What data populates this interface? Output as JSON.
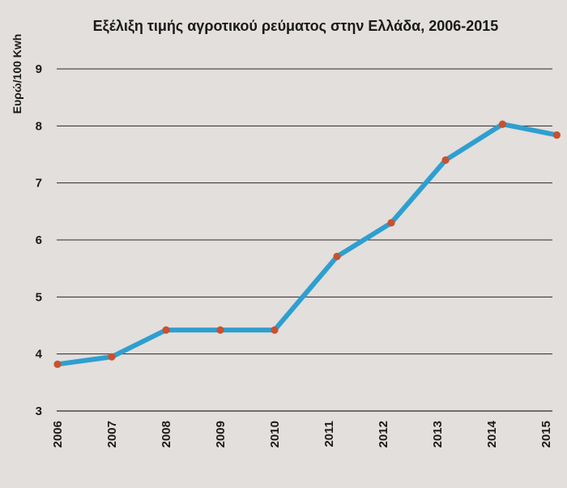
{
  "chart_data": {
    "type": "line",
    "title": "Εξέλιξη τιμής αγροτικού ρεύματος στην Ελλάδα, 2006-2015",
    "xlabel": "",
    "ylabel": "Ευρώ/100 Kwh",
    "categories": [
      "2006",
      "2007",
      "2008",
      "2009",
      "2010",
      "2011",
      "2012",
      "2013",
      "2014",
      "2015"
    ],
    "x": [
      2006.0,
      2007.0,
      2008.0,
      2009.0,
      2010.0,
      2011.0,
      2012.0,
      2013.0,
      2014.0,
      2015.0
    ],
    "series": [
      {
        "values": [
          3.82,
          3.95,
          4.42,
          4.42,
          4.42,
          5.71,
          6.3,
          7.4,
          8.03,
          7.84
        ],
        "x": [
          2006.0,
          2007.0,
          2008.0,
          2009.0,
          2010.0,
          2011.15,
          2012.15,
          2013.15,
          2014.2,
          2015.2
        ]
      }
    ],
    "yticks": [
      "3",
      "4",
      "5",
      "6",
      "7",
      "8",
      "9"
    ],
    "ylim": [
      3,
      9
    ],
    "grid": true,
    "colors": {
      "line": "#2e9fd0",
      "marker": "#c9512e",
      "grid": "#2a2a2a"
    }
  }
}
